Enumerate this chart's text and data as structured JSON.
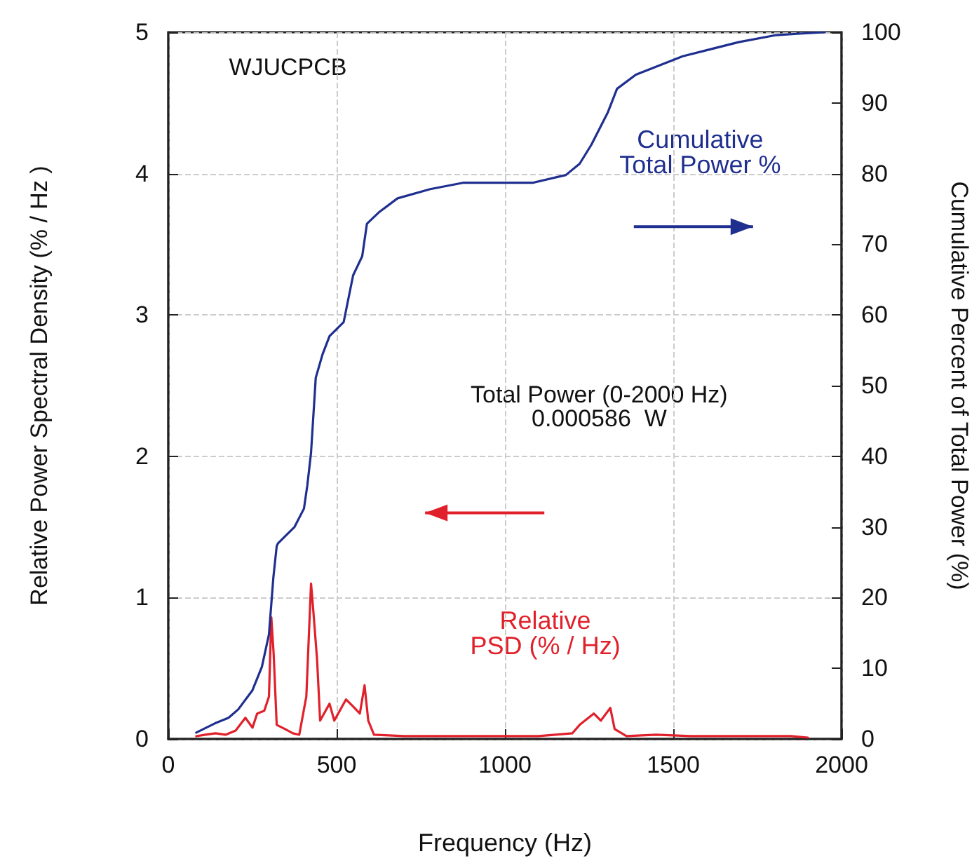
{
  "chart_data": {
    "type": "line",
    "xlabel": "Frequency (Hz)",
    "ylabel": "Relative Power Spectral Density (% / Hz )",
    "y2label": "Cumulative Percent of Total Power (%)",
    "xlim": [
      0,
      2000
    ],
    "xticks": [
      0,
      500,
      1000,
      1500,
      2000
    ],
    "ylim": [
      0,
      5
    ],
    "yticks": [
      0,
      1,
      2,
      3,
      4,
      5
    ],
    "y2lim": [
      0,
      100
    ],
    "y2ticks": [
      0,
      10,
      20,
      30,
      40,
      50,
      60,
      70,
      80,
      90,
      100
    ],
    "grid": true,
    "legend": false,
    "marker": "none",
    "line_style": "solid",
    "annotations": [
      "WJUCPCB",
      "Total Power (0-2000 Hz)\n0.000586  W"
    ],
    "series": [
      {
        "name": "Relative PSD (% / Hz)",
        "color": "#e0202a",
        "x": [
          83,
          110,
          140,
          170,
          200,
          229,
          250,
          264,
          285,
          299,
          306,
          313,
          322,
          347,
          370,
          389,
          410,
          424,
          431,
          442,
          451,
          479,
          493,
          528,
          549,
          569,
          583,
          594,
          611,
          700,
          800,
          900,
          1000,
          1100,
          1200,
          1222,
          1264,
          1285,
          1313,
          1326,
          1361,
          1450,
          1550,
          1650,
          1750,
          1850,
          1900
        ],
        "values": [
          0.02,
          0.03,
          0.04,
          0.03,
          0.06,
          0.15,
          0.08,
          0.18,
          0.2,
          0.3,
          0.86,
          0.6,
          0.1,
          0.07,
          0.04,
          0.03,
          0.3,
          1.1,
          0.9,
          0.56,
          0.13,
          0.25,
          0.13,
          0.28,
          0.23,
          0.18,
          0.38,
          0.13,
          0.03,
          0.02,
          0.02,
          0.02,
          0.02,
          0.02,
          0.04,
          0.1,
          0.18,
          0.13,
          0.22,
          0.07,
          0.02,
          0.03,
          0.02,
          0.02,
          0.02,
          0.02,
          0.01
        ]
      },
      {
        "name": "Cumulative Total Power %",
        "color": "#1f2f8f",
        "axis": "y2",
        "x": [
          83,
          138,
          179,
          208,
          250,
          278,
          299,
          312,
          322,
          326,
          375,
          403,
          413,
          424,
          438,
          458,
          479,
          521,
          549,
          576,
          590,
          625,
          681,
          778,
          875,
          1083,
          1181,
          1222,
          1257,
          1306,
          1333,
          1389,
          1528,
          1694,
          1806,
          1875,
          1950
        ],
        "values": [
          0.9,
          2.2,
          3.0,
          4.2,
          6.9,
          10.2,
          14.8,
          22.8,
          27.3,
          27.7,
          30,
          32.6,
          35.9,
          40.5,
          51.1,
          54.4,
          57.0,
          59.0,
          65.6,
          68.3,
          72.9,
          74.5,
          76.5,
          77.8,
          78.7,
          78.7,
          79.8,
          81.4,
          84.1,
          88.7,
          92.0,
          94.0,
          96.6,
          98.6,
          99.6,
          99.8,
          100
        ]
      }
    ]
  }
}
